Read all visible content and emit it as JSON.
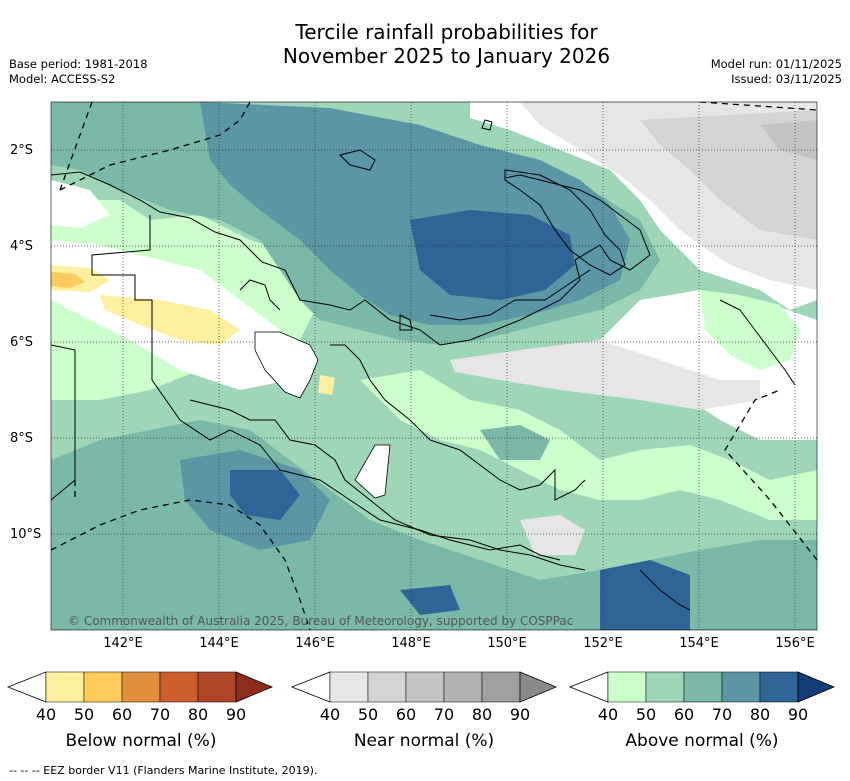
{
  "title": {
    "line1": "Tercile rainfall probabilities for",
    "line2": "November 2025 to January 2026"
  },
  "meta": {
    "base_period": "Base period: 1981-2018",
    "model": "Model: ACCESS-S2",
    "model_run": "Model run: 01/11/2025",
    "issued": "Issued: 03/11/2025"
  },
  "axes": {
    "lat_labels": [
      "2°S",
      "4°S",
      "6°S",
      "8°S",
      "10°S"
    ],
    "lon_labels": [
      "142°E",
      "144°E",
      "146°E",
      "148°E",
      "150°E",
      "152°E",
      "154°E",
      "156°E"
    ]
  },
  "copyright": "© Commonwealth of Australia 2025, Bureau of Meteorology, supported by COSPPac",
  "legend": {
    "below": {
      "label": "Below normal (%)",
      "ticks": [
        "40",
        "50",
        "60",
        "70",
        "80",
        "90"
      ],
      "colors": [
        "#ffffff",
        "#fff0a0",
        "#fecc5c",
        "#e0903c",
        "#cc5e2e",
        "#b04628",
        "#8c2d1e"
      ]
    },
    "near": {
      "label": "Near normal (%)",
      "ticks": [
        "40",
        "50",
        "60",
        "70",
        "80",
        "90"
      ],
      "colors": [
        "#ffffff",
        "#e6e6e6",
        "#d4d4d4",
        "#c4c4c4",
        "#b2b2b2",
        "#a0a0a0",
        "#8a8a8a"
      ]
    },
    "above": {
      "label": "Above normal (%)",
      "ticks": [
        "40",
        "50",
        "60",
        "70",
        "80",
        "90"
      ],
      "colors": [
        "#ffffff",
        "#ccffcc",
        "#9fd6b8",
        "#7ab8a8",
        "#5a96a4",
        "#2e6496",
        "#143c78"
      ]
    }
  },
  "footnote": "--  --  -- EEZ border V11 (Flanders Marine Institute, 2019)."
}
